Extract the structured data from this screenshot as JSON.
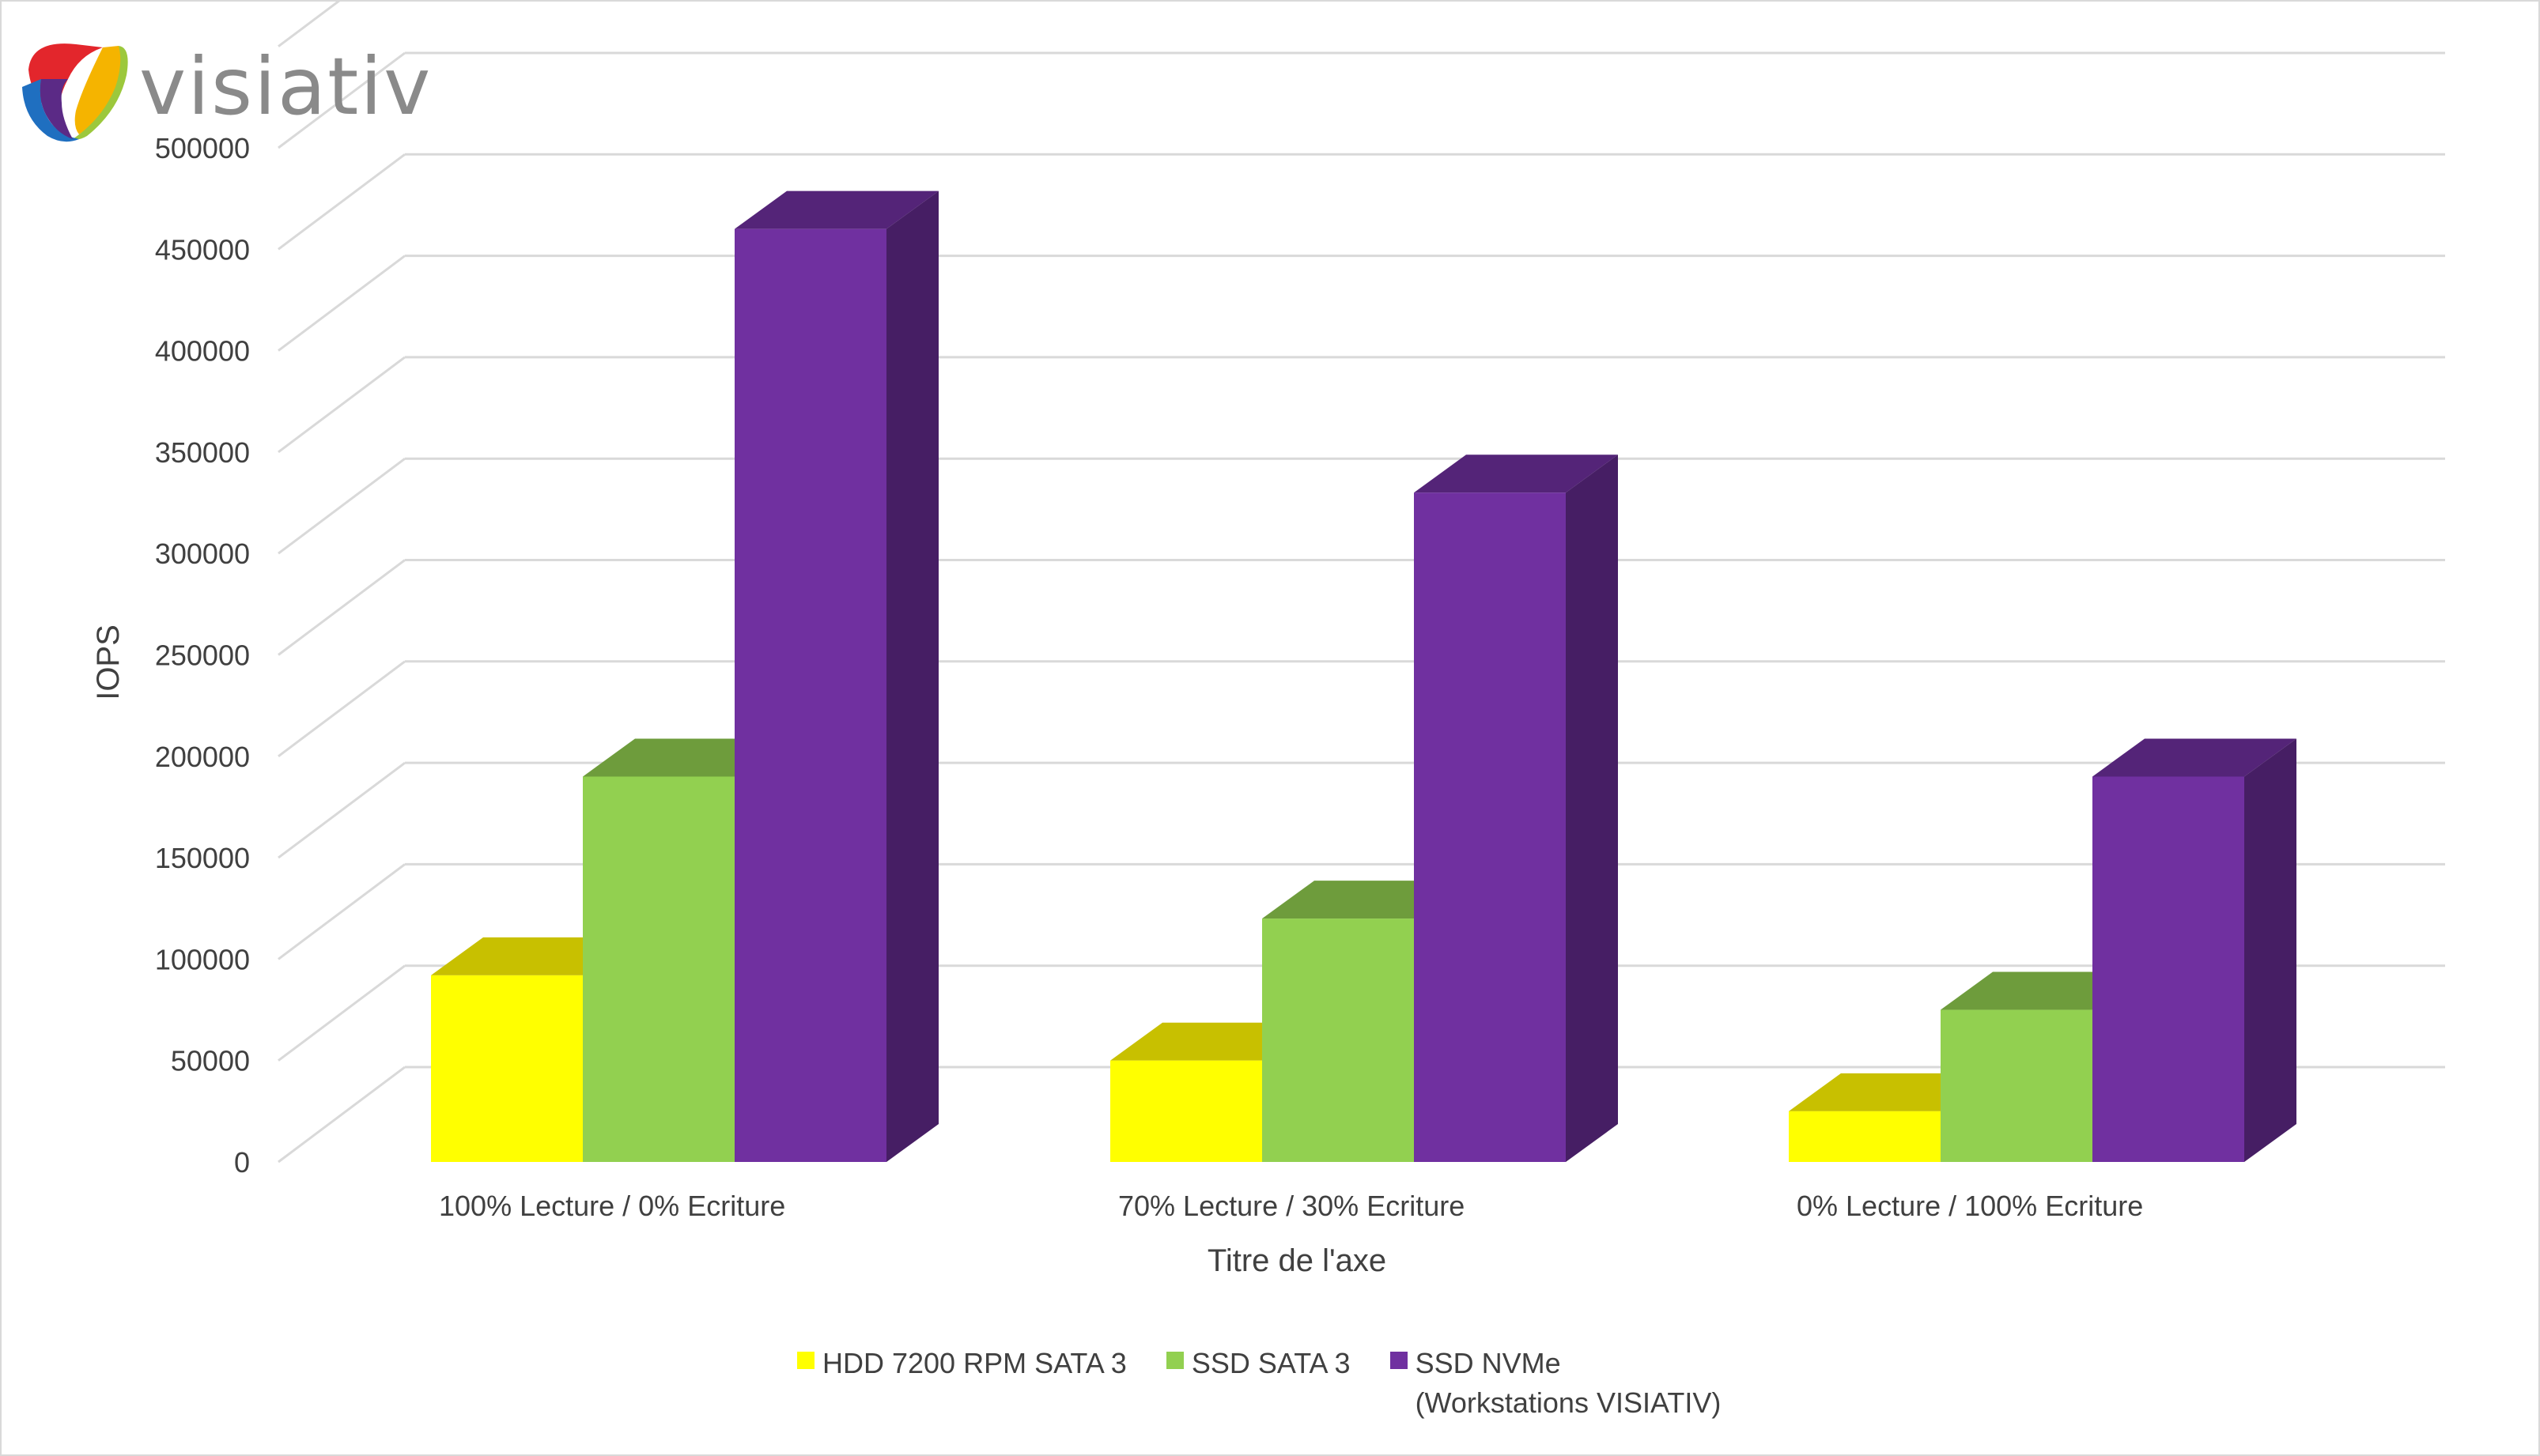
{
  "logo": {
    "text": "visiativ"
  },
  "colors": {
    "hdd": {
      "front": "#ffff00",
      "top": "#c8c000",
      "side": "#a09a00"
    },
    "sata": {
      "front": "#92d050",
      "top": "#6e9c3c",
      "side": "#5a8030"
    },
    "nvme": {
      "front": "#7030a0",
      "top": "#542478",
      "side": "#461e64"
    },
    "grid": "#d9d9d9"
  },
  "chart_data": {
    "type": "bar",
    "subtype": "3d-clustered-column",
    "categories": [
      "100% Lecture / 0% Ecriture",
      "70% Lecture / 30% Ecriture",
      "0% Lecture / 100% Ecriture"
    ],
    "series": [
      {
        "name": "HDD 7200 RPM SATA 3",
        "values": [
          92000,
          50000,
          25000
        ],
        "color_key": "hdd"
      },
      {
        "name": "SSD SATA 3",
        "values": [
          190000,
          120000,
          75000
        ],
        "color_key": "sata"
      },
      {
        "name": "SSD NVMe\n(Workstations VISIATIV)",
        "values": [
          460000,
          330000,
          190000
        ],
        "color_key": "nvme"
      }
    ],
    "yticks": [
      "0",
      "50000",
      "100000",
      "150000",
      "200000",
      "250000",
      "300000",
      "350000",
      "400000",
      "450000",
      "500000"
    ],
    "ylim": [
      0,
      550000
    ],
    "ylabel": "IOPS",
    "xlabel": "Titre de l'axe",
    "grid": true,
    "legend": "bottom"
  }
}
